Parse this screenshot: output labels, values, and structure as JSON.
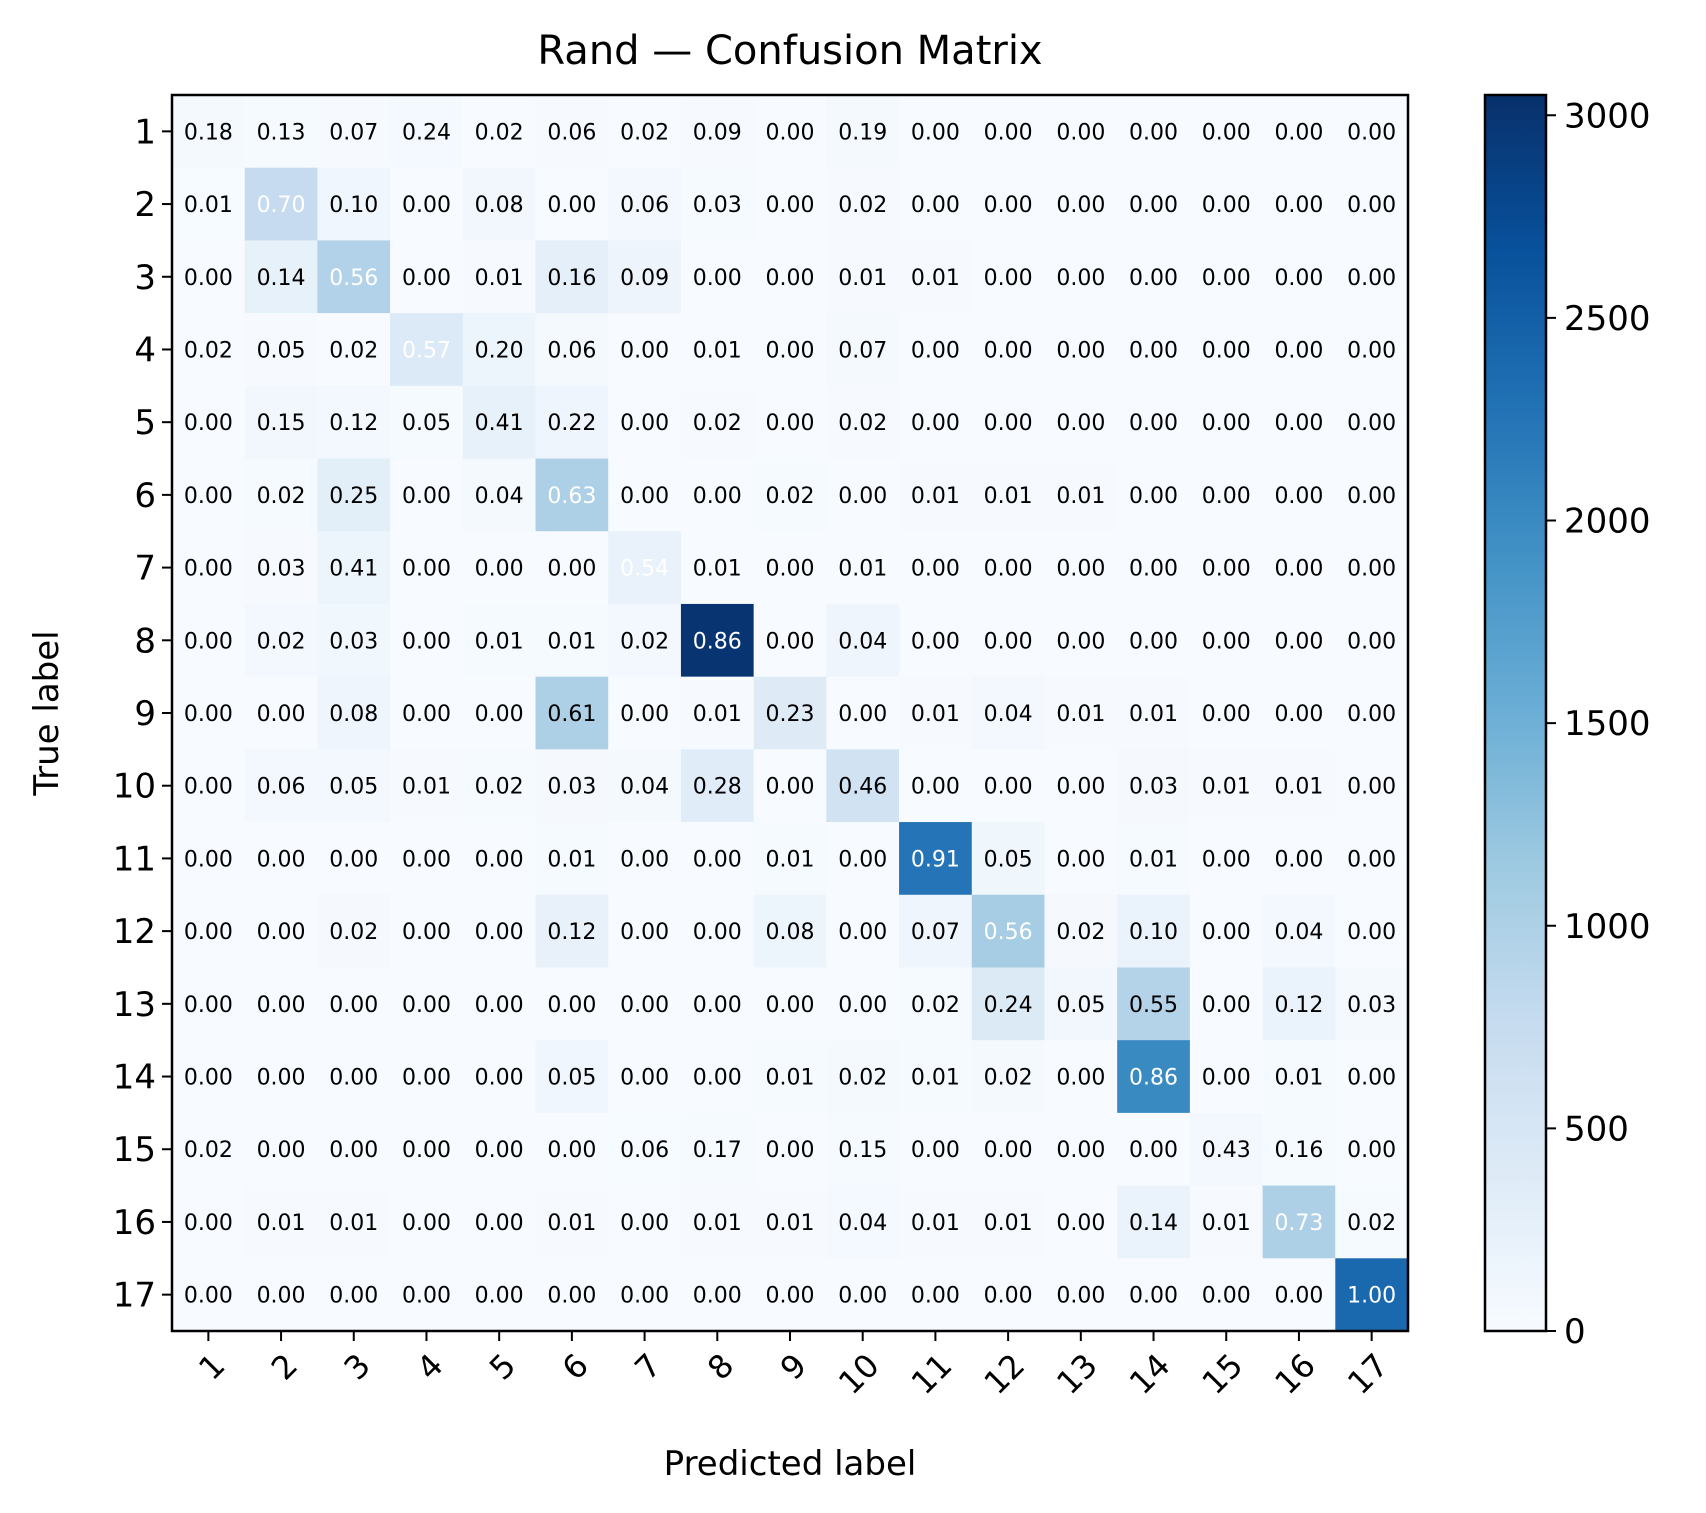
{
  "chart_data": {
    "type": "heatmap",
    "title": "Rand — Confusion Matrix",
    "xlabel": "Predicted label",
    "ylabel": "True label",
    "x_categories": [
      "1",
      "2",
      "3",
      "4",
      "5",
      "6",
      "7",
      "8",
      "9",
      "10",
      "11",
      "12",
      "13",
      "14",
      "15",
      "16",
      "17"
    ],
    "y_categories": [
      "1",
      "2",
      "3",
      "4",
      "5",
      "6",
      "7",
      "8",
      "9",
      "10",
      "11",
      "12",
      "13",
      "14",
      "15",
      "16",
      "17"
    ],
    "colormap": "Blues",
    "colorbar": {
      "range": [
        0,
        3050
      ],
      "ticks": [
        "0",
        "500",
        "1000",
        "1500",
        "2000",
        "2500",
        "3000"
      ],
      "tick_values": [
        0,
        500,
        1000,
        1500,
        2000,
        2500,
        3000
      ]
    },
    "colors": {
      "low": "#f7fbff",
      "high": "#08306b",
      "text_dark": "#000000",
      "text_light": "#ffffff"
    },
    "values": [
      [
        "0.18",
        "0.13",
        "0.07",
        "0.24",
        "0.02",
        "0.06",
        "0.02",
        "0.09",
        "0.00",
        "0.19",
        "0.00",
        "0.00",
        "0.00",
        "0.00",
        "0.00",
        "0.00",
        "0.00"
      ],
      [
        "0.01",
        "0.70",
        "0.10",
        "0.00",
        "0.08",
        "0.00",
        "0.06",
        "0.03",
        "0.00",
        "0.02",
        "0.00",
        "0.00",
        "0.00",
        "0.00",
        "0.00",
        "0.00",
        "0.00"
      ],
      [
        "0.00",
        "0.14",
        "0.56",
        "0.00",
        "0.01",
        "0.16",
        "0.09",
        "0.00",
        "0.00",
        "0.01",
        "0.01",
        "0.00",
        "0.00",
        "0.00",
        "0.00",
        "0.00",
        "0.00"
      ],
      [
        "0.02",
        "0.05",
        "0.02",
        "0.57",
        "0.20",
        "0.06",
        "0.00",
        "0.01",
        "0.00",
        "0.07",
        "0.00",
        "0.00",
        "0.00",
        "0.00",
        "0.00",
        "0.00",
        "0.00"
      ],
      [
        "0.00",
        "0.15",
        "0.12",
        "0.05",
        "0.41",
        "0.22",
        "0.00",
        "0.02",
        "0.00",
        "0.02",
        "0.00",
        "0.00",
        "0.00",
        "0.00",
        "0.00",
        "0.00",
        "0.00"
      ],
      [
        "0.00",
        "0.02",
        "0.25",
        "0.00",
        "0.04",
        "0.63",
        "0.00",
        "0.00",
        "0.02",
        "0.00",
        "0.01",
        "0.01",
        "0.01",
        "0.00",
        "0.00",
        "0.00",
        "0.00"
      ],
      [
        "0.00",
        "0.03",
        "0.41",
        "0.00",
        "0.00",
        "0.00",
        "0.54",
        "0.01",
        "0.00",
        "0.01",
        "0.00",
        "0.00",
        "0.00",
        "0.00",
        "0.00",
        "0.00",
        "0.00"
      ],
      [
        "0.00",
        "0.02",
        "0.03",
        "0.00",
        "0.01",
        "0.01",
        "0.02",
        "0.86",
        "0.00",
        "0.04",
        "0.00",
        "0.00",
        "0.00",
        "0.00",
        "0.00",
        "0.00",
        "0.00"
      ],
      [
        "0.00",
        "0.00",
        "0.08",
        "0.00",
        "0.00",
        "0.61",
        "0.00",
        "0.01",
        "0.23",
        "0.00",
        "0.01",
        "0.04",
        "0.01",
        "0.01",
        "0.00",
        "0.00",
        "0.00"
      ],
      [
        "0.00",
        "0.06",
        "0.05",
        "0.01",
        "0.02",
        "0.03",
        "0.04",
        "0.28",
        "0.00",
        "0.46",
        "0.00",
        "0.00",
        "0.00",
        "0.03",
        "0.01",
        "0.01",
        "0.00"
      ],
      [
        "0.00",
        "0.00",
        "0.00",
        "0.00",
        "0.00",
        "0.01",
        "0.00",
        "0.00",
        "0.01",
        "0.00",
        "0.91",
        "0.05",
        "0.00",
        "0.01",
        "0.00",
        "0.00",
        "0.00"
      ],
      [
        "0.00",
        "0.00",
        "0.02",
        "0.00",
        "0.00",
        "0.12",
        "0.00",
        "0.00",
        "0.08",
        "0.00",
        "0.07",
        "0.56",
        "0.02",
        "0.10",
        "0.00",
        "0.04",
        "0.00"
      ],
      [
        "0.00",
        "0.00",
        "0.00",
        "0.00",
        "0.00",
        "0.00",
        "0.00",
        "0.00",
        "0.00",
        "0.00",
        "0.02",
        "0.24",
        "0.05",
        "0.55",
        "0.00",
        "0.12",
        "0.03"
      ],
      [
        "0.00",
        "0.00",
        "0.00",
        "0.00",
        "0.00",
        "0.05",
        "0.00",
        "0.00",
        "0.01",
        "0.02",
        "0.01",
        "0.02",
        "0.00",
        "0.86",
        "0.00",
        "0.01",
        "0.00"
      ],
      [
        "0.02",
        "0.00",
        "0.00",
        "0.00",
        "0.00",
        "0.00",
        "0.06",
        "0.17",
        "0.00",
        "0.15",
        "0.00",
        "0.00",
        "0.00",
        "0.00",
        "0.43",
        "0.16",
        "0.00"
      ],
      [
        "0.00",
        "0.01",
        "0.01",
        "0.00",
        "0.00",
        "0.01",
        "0.00",
        "0.01",
        "0.01",
        "0.04",
        "0.01",
        "0.01",
        "0.00",
        "0.14",
        "0.01",
        "0.73",
        "0.02"
      ],
      [
        "0.00",
        "0.00",
        "0.00",
        "0.00",
        "0.00",
        "0.00",
        "0.00",
        "0.00",
        "0.00",
        "0.00",
        "0.00",
        "0.00",
        "0.00",
        "0.00",
        "0.00",
        "0.00",
        "1.00"
      ]
    ],
    "cell_counts_estimate": [
      [
        40,
        30,
        15,
        55,
        5,
        14,
        5,
        20,
        0,
        43,
        0,
        0,
        0,
        0,
        0,
        0,
        0
      ],
      [
        8,
        760,
        110,
        0,
        87,
        0,
        65,
        33,
        0,
        22,
        0,
        0,
        0,
        0,
        0,
        0,
        0
      ],
      [
        0,
        240,
        960,
        0,
        17,
        275,
        155,
        0,
        0,
        17,
        17,
        0,
        0,
        0,
        0,
        0,
        0
      ],
      [
        5,
        12,
        5,
        420,
        147,
        44,
        0,
        7,
        0,
        52,
        0,
        0,
        0,
        0,
        0,
        0,
        0
      ],
      [
        0,
        90,
        72,
        30,
        246,
        132,
        0,
        12,
        0,
        12,
        0,
        0,
        0,
        0,
        0,
        0,
        0
      ],
      [
        0,
        25,
        315,
        0,
        50,
        1000,
        0,
        0,
        25,
        0,
        13,
        13,
        13,
        0,
        0,
        0,
        0
      ],
      [
        0,
        12,
        165,
        0,
        0,
        0,
        218,
        4,
        0,
        4,
        0,
        0,
        0,
        0,
        0,
        0,
        0
      ],
      [
        0,
        70,
        104,
        0,
        35,
        35,
        70,
        3000,
        0,
        140,
        0,
        0,
        0,
        0,
        0,
        0,
        0
      ],
      [
        0,
        0,
        132,
        0,
        0,
        1000,
        0,
        16,
        378,
        0,
        16,
        66,
        16,
        16,
        0,
        0,
        0
      ],
      [
        0,
        76,
        64,
        13,
        25,
        38,
        51,
        356,
        0,
        585,
        0,
        0,
        0,
        38,
        13,
        13,
        0
      ],
      [
        0,
        0,
        0,
        0,
        0,
        25,
        0,
        0,
        25,
        0,
        2250,
        124,
        0,
        25,
        0,
        0,
        0
      ],
      [
        0,
        0,
        38,
        0,
        0,
        230,
        0,
        0,
        153,
        0,
        134,
        1070,
        38,
        191,
        0,
        77,
        0
      ],
      [
        0,
        0,
        0,
        0,
        0,
        0,
        0,
        0,
        0,
        0,
        34,
        408,
        85,
        935,
        0,
        204,
        51
      ],
      [
        0,
        0,
        0,
        0,
        0,
        116,
        0,
        0,
        23,
        46,
        23,
        46,
        0,
        2000,
        0,
        23,
        0
      ],
      [
        3,
        0,
        0,
        0,
        0,
        0,
        9,
        26,
        0,
        23,
        0,
        0,
        0,
        0,
        65,
        24,
        0
      ],
      [
        0,
        14,
        14,
        0,
        0,
        14,
        0,
        14,
        14,
        55,
        14,
        14,
        0,
        193,
        14,
        1000,
        28
      ],
      [
        0,
        0,
        0,
        0,
        0,
        0,
        0,
        0,
        0,
        0,
        0,
        0,
        0,
        0,
        0,
        0,
        2400
      ]
    ]
  }
}
